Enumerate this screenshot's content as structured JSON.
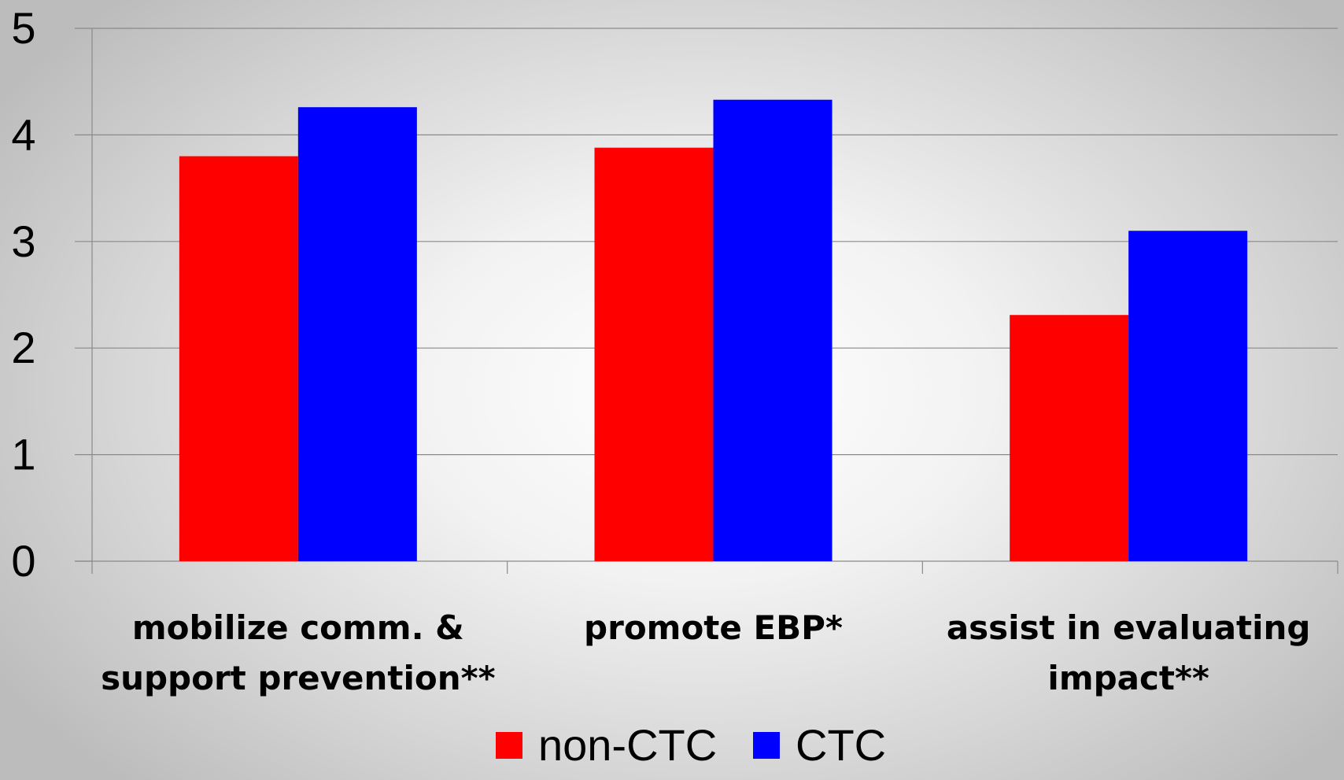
{
  "chart_data": {
    "type": "bar",
    "categories": [
      [
        "mobilize comm. &",
        "support prevention**"
      ],
      [
        "promote EBP*"
      ],
      [
        "assist in evaluating",
        "impact**"
      ]
    ],
    "series": [
      {
        "name": "non-CTC",
        "color": "#ff0000",
        "values": [
          3.8,
          3.88,
          2.31
        ]
      },
      {
        "name": "CTC",
        "color": "#0000ff",
        "values": [
          4.26,
          4.33,
          3.1
        ]
      }
    ],
    "yticks": [
      "0",
      "1",
      "2",
      "3",
      "4",
      "5"
    ],
    "ylim": [
      0,
      5
    ],
    "grid": true,
    "legend": "bottom"
  }
}
